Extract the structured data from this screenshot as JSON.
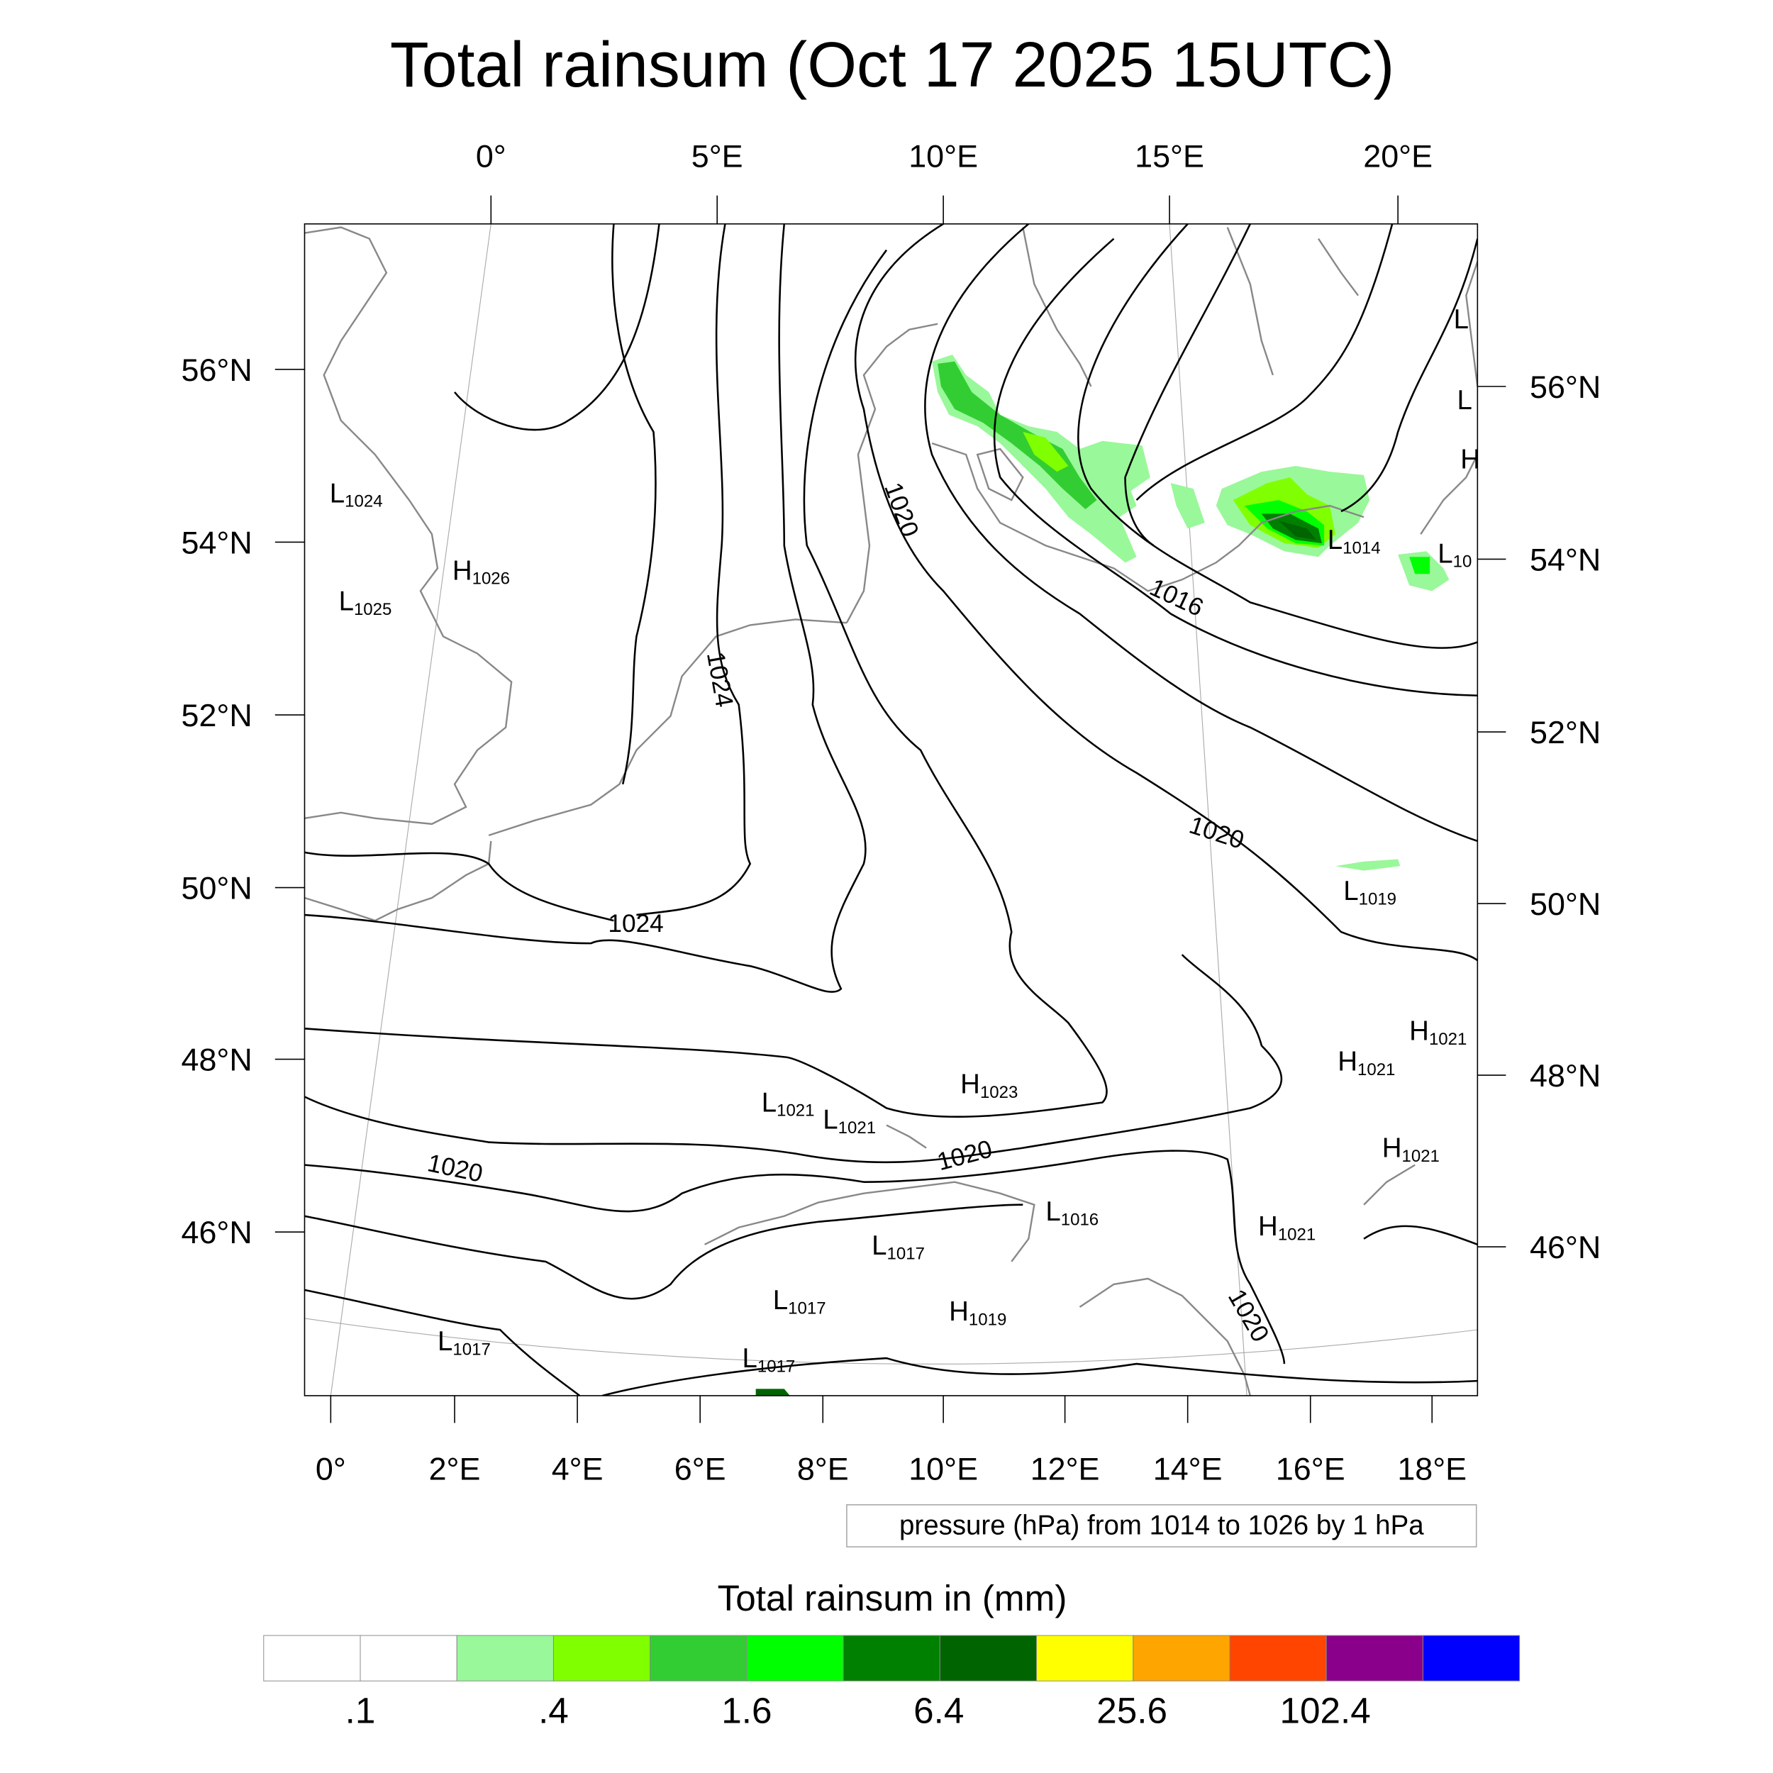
{
  "title": "Total rainsum (Oct 17 2025 15UTC)",
  "top_lon_labels": [
    "0°",
    "5°E",
    "10°E",
    "15°E",
    "20°E"
  ],
  "bottom_lon_labels": [
    "0°",
    "2°E",
    "4°E",
    "6°E",
    "8°E",
    "10°E",
    "12°E",
    "14°E",
    "16°E",
    "18°E"
  ],
  "left_lat_labels": [
    "56°N",
    "54°N",
    "52°N",
    "50°N",
    "48°N",
    "46°N"
  ],
  "right_lat_labels": [
    "56°N",
    "54°N",
    "52°N",
    "50°N",
    "48°N",
    "46°N"
  ],
  "pressure_centers": [
    {
      "letter": "L",
      "value": "1024"
    },
    {
      "letter": "H",
      "value": "1026"
    },
    {
      "letter": "L",
      "value": "1025"
    },
    {
      "letter": "L",
      "value": "1014"
    },
    {
      "letter": "L",
      "value": "10"
    },
    {
      "letter": "L",
      "value": ""
    },
    {
      "letter": "L",
      "value": ""
    },
    {
      "letter": "H",
      "value": ""
    },
    {
      "letter": "L",
      "value": "1019"
    },
    {
      "letter": "H",
      "value": "1021"
    },
    {
      "letter": "H",
      "value": "1021"
    },
    {
      "letter": "H",
      "value": "1021"
    },
    {
      "letter": "H",
      "value": "1021"
    },
    {
      "letter": "H",
      "value": "1023"
    },
    {
      "letter": "L",
      "value": "1021"
    },
    {
      "letter": "L",
      "value": "1021"
    },
    {
      "letter": "L",
      "value": "1016"
    },
    {
      "letter": "L",
      "value": "1017"
    },
    {
      "letter": "L",
      "value": "1017"
    },
    {
      "letter": "H",
      "value": "1019"
    },
    {
      "letter": "L",
      "value": "1017"
    },
    {
      "letter": "L",
      "value": "1017"
    }
  ],
  "contour_labels": [
    "1020",
    "1016",
    "1024",
    "1020",
    "1024",
    "1020",
    "1020",
    "1020"
  ],
  "contour_info": "pressure (hPa) from 1014 to 1026 by 1 hPa",
  "colorbar": {
    "title": "Total rainsum in (mm)",
    "colors": [
      "#ffffff",
      "#ffffff",
      "#99f899",
      "#80ff00",
      "#32cd32",
      "#00ff00",
      "#008000",
      "#006400",
      "#ffff00",
      "#ffa500",
      "#ff4500",
      "#8b008b",
      "#0000ff"
    ],
    "labels": [
      ".1",
      ".4",
      "1.6",
      "6.4",
      "25.6",
      "102.4"
    ]
  }
}
